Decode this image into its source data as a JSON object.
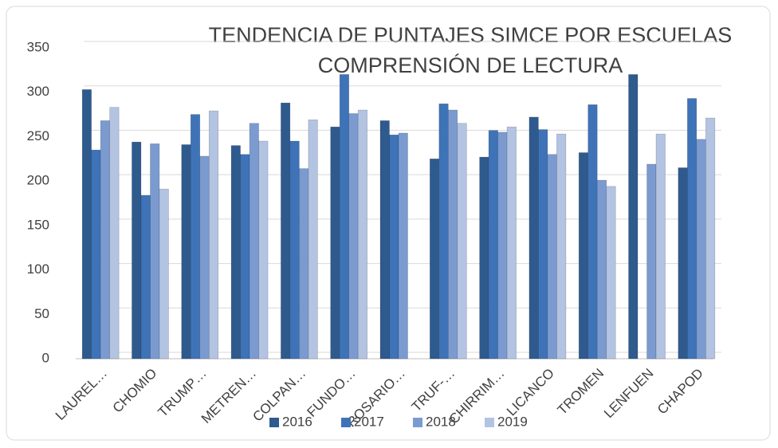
{
  "chart_data": {
    "type": "bar",
    "title": "TENDENCIA DE PUNTAJES SIMCE POR ESCUELAS",
    "subtitle": "COMPRENSIÓN DE LECTURA",
    "categories": [
      "LAUREL…",
      "CHOMIO",
      "TRUMP…",
      "METREN…",
      "COLPAN…",
      "FUNDO…",
      "ROSARIO…",
      "TRUF-…",
      "CHIRRIM…",
      "LICANCO",
      "TROMEN",
      "LENFUEN",
      "CHAPOD"
    ],
    "series": [
      {
        "name": "2016",
        "color": "#2e5a8e",
        "values": [
          303,
          244,
          241,
          240,
          288,
          261,
          268,
          225,
          227,
          272,
          232,
          320,
          215
        ]
      },
      {
        "name": "2017",
        "color": "#3e73b8",
        "values": [
          235,
          184,
          275,
          230,
          245,
          320,
          252,
          287,
          257,
          258,
          286,
          0,
          293
        ]
      },
      {
        "name": "2018",
        "color": "#7b9bd0",
        "values": [
          268,
          242,
          228,
          265,
          214,
          276,
          254,
          280,
          255,
          230,
          201,
          219,
          247
        ]
      },
      {
        "name": "2019",
        "color": "#b3c3e2",
        "values": [
          283,
          191,
          279,
          245,
          269,
          280,
          0,
          265,
          261,
          253,
          194,
          253,
          271
        ]
      }
    ],
    "ylim": [
      0,
      350
    ],
    "yticks": [
      0,
      50,
      100,
      150,
      200,
      250,
      300,
      350
    ],
    "grid": true,
    "legend": "bottom"
  }
}
